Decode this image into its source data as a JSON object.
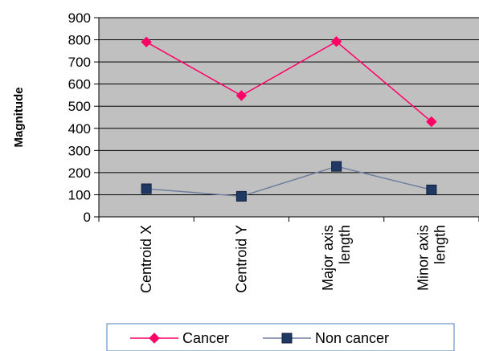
{
  "chart_data": {
    "type": "line",
    "title": "",
    "xlabel": "",
    "ylabel": "Magnitude",
    "ylim": [
      0,
      900
    ],
    "yticks": [
      0,
      100,
      200,
      300,
      400,
      500,
      600,
      700,
      800,
      900
    ],
    "grid": true,
    "legend_position": "bottom",
    "plot_background": "#c0c0c0",
    "categories": [
      [
        "Centroid X"
      ],
      [
        "Centroid Y"
      ],
      [
        "Major axis",
        "length"
      ],
      [
        "Minor axis",
        "length"
      ]
    ],
    "series": [
      {
        "name": "Cancer",
        "values": [
          790,
          548,
          792,
          430
        ],
        "color": "#ff0066",
        "marker": "diamond"
      },
      {
        "name": "Non cancer",
        "values": [
          127,
          93,
          228,
          122
        ],
        "color": "#1f3864",
        "line_color": "#6f7f9f",
        "marker": "square"
      }
    ]
  }
}
